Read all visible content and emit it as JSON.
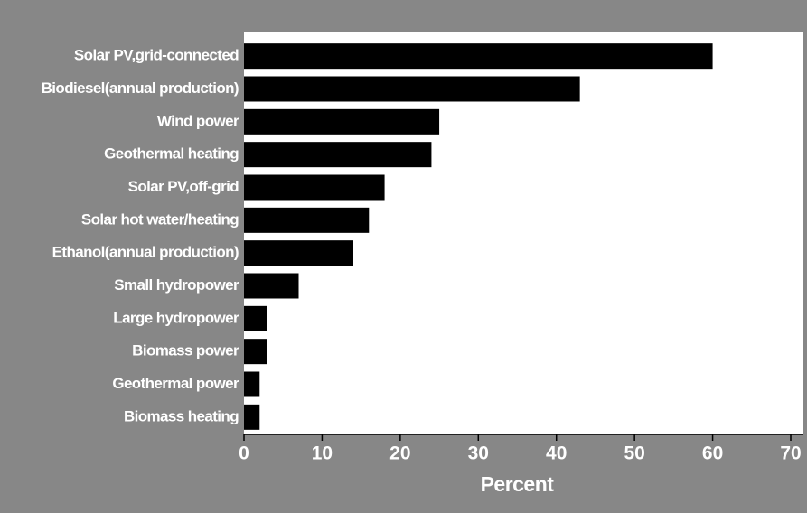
{
  "chart_data": {
    "type": "bar",
    "orientation": "horizontal",
    "xlabel": "Percent",
    "categories": [
      "Solar PV,grid-connected",
      "Biodiesel(annual production)",
      "Wind power",
      "Geothermal heating",
      "Solar PV,off-grid",
      "Solar hot water/heating",
      "Ethanol(annual production)",
      "Small hydropower",
      "Large hydropower",
      "Biomass power",
      "Geothermal power",
      "Biomass heating"
    ],
    "values": [
      60,
      43,
      25,
      24,
      18,
      16,
      14,
      7,
      3,
      3,
      2,
      2
    ],
    "color": "#000000",
    "xlim": [
      0,
      70
    ],
    "xticks": [
      0,
      10,
      20,
      30,
      40,
      50,
      60,
      70
    ],
    "grid": false
  }
}
